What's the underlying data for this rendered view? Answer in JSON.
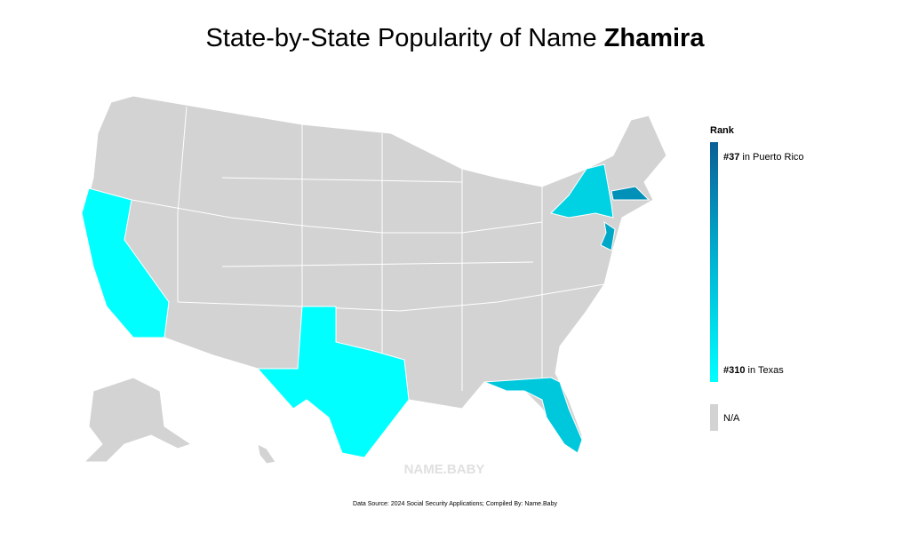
{
  "header": {
    "title": "State-by-State Popularity of Name",
    "name": "Zhamira"
  },
  "legend": {
    "title": "Rank",
    "top": {
      "rank": "#37",
      "place": "in Puerto Rico"
    },
    "bottom": {
      "rank": "#310",
      "place": "in Texas"
    },
    "na": "N/A"
  },
  "watermark": "NAME.BABY",
  "footer": {
    "source": "Data Source: 2024 Social Security Applications; Compiled By: Name.Baby"
  }
}
